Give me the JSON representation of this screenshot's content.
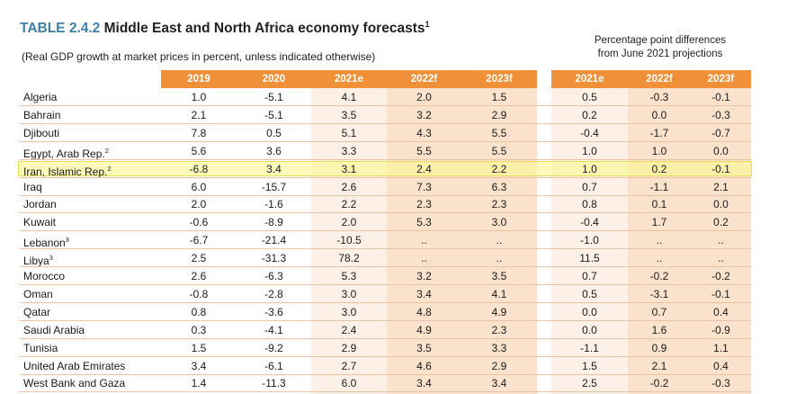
{
  "title": {
    "number": "TABLE 2.4.2",
    "text": "Middle East and North Africa economy forecasts",
    "footnote": "1"
  },
  "subtitle": "(Real GDP growth at market prices in percent, unless indicated otherwise)",
  "pp_note": {
    "line1": "Percentage point differences",
    "line2": "from June 2021 projections"
  },
  "colors": {
    "header_orange": "#f0913a",
    "shade_light": "#fdf0e6",
    "shade_dark": "#fbe2cc",
    "highlight": "#faf896",
    "title_blue": "#3e7fa6"
  },
  "headers_main": [
    "2019",
    "2020",
    "2021e",
    "2022f",
    "2023f"
  ],
  "headers_diff": [
    "2021e",
    "2022f",
    "2023f"
  ],
  "rows": [
    {
      "name": "Algeria",
      "sup": "",
      "main": [
        "1.0",
        "-5.1",
        "4.1",
        "2.0",
        "1.5"
      ],
      "diff": [
        "0.5",
        "-0.3",
        "-0.1"
      ]
    },
    {
      "name": "Bahrain",
      "sup": "",
      "main": [
        "2.1",
        "-5.1",
        "3.5",
        "3.2",
        "2.9"
      ],
      "diff": [
        "0.2",
        "0.0",
        "-0.3"
      ]
    },
    {
      "name": "Djibouti",
      "sup": "",
      "main": [
        "7.8",
        "0.5",
        "5.1",
        "4.3",
        "5.5"
      ],
      "diff": [
        "-0.4",
        "-1.7",
        "-0.7"
      ]
    },
    {
      "name": "Egypt, Arab Rep.",
      "sup": "2",
      "main": [
        "5.6",
        "3.6",
        "3.3",
        "5.5",
        "5.5"
      ],
      "diff": [
        "1.0",
        "1.0",
        "0.0"
      ]
    },
    {
      "name": "Iran, Islamic Rep.",
      "sup": "2",
      "main": [
        "-6.8",
        "3.4",
        "3.1",
        "2.4",
        "2.2"
      ],
      "diff": [
        "1.0",
        "0.2",
        "-0.1"
      ]
    },
    {
      "name": "Iraq",
      "sup": "",
      "main": [
        "6.0",
        "-15.7",
        "2.6",
        "7.3",
        "6.3"
      ],
      "diff": [
        "0.7",
        "-1.1",
        "2.1"
      ]
    },
    {
      "name": "Jordan",
      "sup": "",
      "main": [
        "2.0",
        "-1.6",
        "2.2",
        "2.3",
        "2.3"
      ],
      "diff": [
        "0.8",
        "0.1",
        "0.0"
      ]
    },
    {
      "name": "Kuwait",
      "sup": "",
      "main": [
        "-0.6",
        "-8.9",
        "2.0",
        "5.3",
        "3.0"
      ],
      "diff": [
        "-0.4",
        "1.7",
        "0.2"
      ]
    },
    {
      "name": "Lebanon",
      "sup": "3",
      "main": [
        "-6.7",
        "-21.4",
        "-10.5",
        "..",
        ".."
      ],
      "diff": [
        "-1.0",
        "..",
        ".."
      ]
    },
    {
      "name": "Libya",
      "sup": "3",
      "main": [
        "2.5",
        "-31.3",
        "78.2",
        "..",
        ".."
      ],
      "diff": [
        "11.5",
        "..",
        ".."
      ]
    },
    {
      "name": "Morocco",
      "sup": "",
      "main": [
        "2.6",
        "-6.3",
        "5.3",
        "3.2",
        "3.5"
      ],
      "diff": [
        "0.7",
        "-0.2",
        "-0.2"
      ]
    },
    {
      "name": "Oman",
      "sup": "",
      "main": [
        "-0.8",
        "-2.8",
        "3.0",
        "3.4",
        "4.1"
      ],
      "diff": [
        "0.5",
        "-3.1",
        "-0.1"
      ]
    },
    {
      "name": "Qatar",
      "sup": "",
      "main": [
        "0.8",
        "-3.6",
        "3.0",
        "4.8",
        "4.9"
      ],
      "diff": [
        "0.0",
        "0.7",
        "0.4"
      ]
    },
    {
      "name": "Saudi Arabia",
      "sup": "",
      "main": [
        "0.3",
        "-4.1",
        "2.4",
        "4.9",
        "2.3"
      ],
      "diff": [
        "0.0",
        "1.6",
        "-0.9"
      ]
    },
    {
      "name": "Tunisia",
      "sup": "",
      "main": [
        "1.5",
        "-9.2",
        "2.9",
        "3.5",
        "3.3"
      ],
      "diff": [
        "-1.1",
        "0.9",
        "1.1"
      ]
    },
    {
      "name": "United Arab Emirates",
      "sup": "",
      "main": [
        "3.4",
        "-6.1",
        "2.7",
        "4.6",
        "2.9"
      ],
      "diff": [
        "1.5",
        "2.1",
        "0.4"
      ]
    },
    {
      "name": "West Bank and Gaza",
      "sup": "",
      "main": [
        "1.4",
        "-11.3",
        "6.0",
        "3.4",
        "3.4"
      ],
      "diff": [
        "2.5",
        "-0.2",
        "-0.3"
      ]
    }
  ]
}
